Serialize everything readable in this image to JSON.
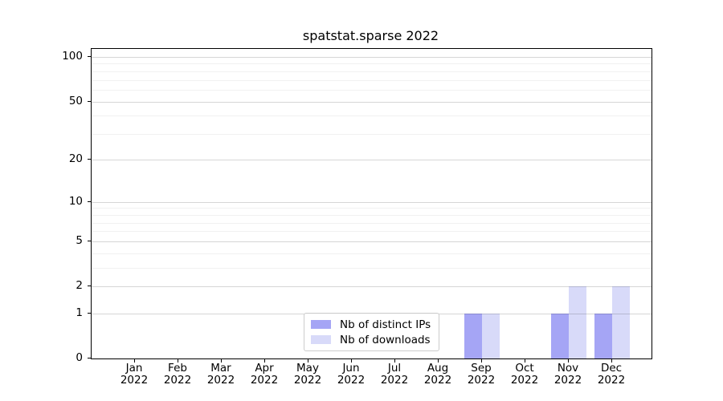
{
  "chart_data": {
    "type": "bar",
    "title": "spatstat.sparse 2022",
    "x_categories": [
      "Jan",
      "Feb",
      "Mar",
      "Apr",
      "May",
      "Jun",
      "Jul",
      "Aug",
      "Sep",
      "Oct",
      "Nov",
      "Dec"
    ],
    "x_year_label": "2022",
    "series": [
      {
        "name": "Nb of distinct IPs",
        "color": "#a5a5f5",
        "values": [
          0,
          0,
          0,
          0,
          0,
          0,
          0,
          0,
          1,
          0,
          1,
          1
        ]
      },
      {
        "name": "Nb of downloads",
        "color": "#d8daf9",
        "values": [
          0,
          0,
          0,
          0,
          0,
          0,
          0,
          0,
          1,
          0,
          2,
          2
        ]
      }
    ],
    "y_axis": {
      "scale": "log1p",
      "tick_labels": [
        "0",
        "1",
        "2",
        "5",
        "10",
        "20",
        "50",
        "100"
      ],
      "major_ticks": [
        0,
        1,
        2,
        5,
        10,
        20,
        50,
        100
      ],
      "minor_gridlines": [
        3,
        4,
        6,
        7,
        8,
        9,
        30,
        40,
        60,
        70,
        80,
        90
      ],
      "max": 113
    },
    "grid": {
      "major_color": "#d6d6d6",
      "minor_color": "#efefef",
      "grid_on": true
    },
    "legend": {
      "position": "lower center",
      "border_color": "#cccccc"
    }
  }
}
